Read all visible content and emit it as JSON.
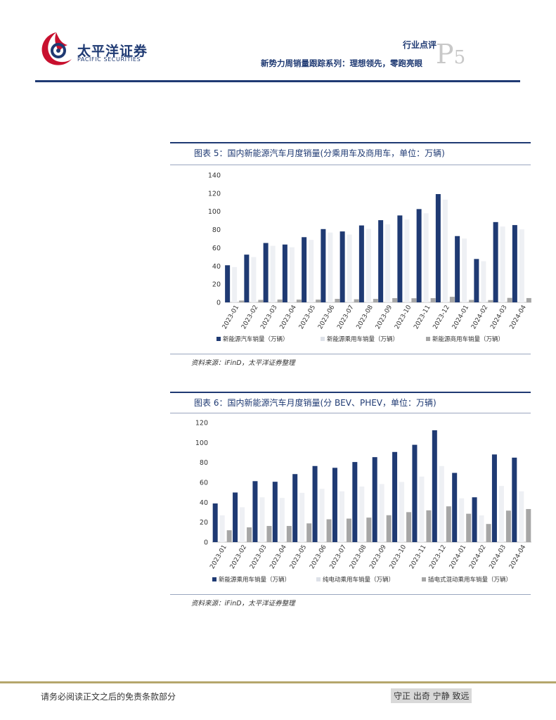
{
  "header": {
    "logo_cn": "太平洋证券",
    "logo_en": "PACIFIC SECURITIES",
    "doc_type": "行业点评",
    "doc_title": "新势力周销量跟踪系列：理想领先，零跑亮眼",
    "page_letter": "P",
    "page_number": "5"
  },
  "figures": [
    {
      "title": "图表 5：国内新能源汽车月度销量(分乘用车及商用车，单位：万辆)",
      "source": "资料来源：iFinD，太平洋证券整理",
      "chart_data": {
        "type": "bar",
        "categories": [
          "2023-01",
          "2023-02",
          "2023-03",
          "2023-04",
          "2023-05",
          "2023-06",
          "2023-07",
          "2023-08",
          "2023-09",
          "2023-10",
          "2023-11",
          "2023-12",
          "2024-01",
          "2024-02",
          "2024-03",
          "2024-04"
        ],
        "series": [
          {
            "name": "新能源汽车销量（万辆）",
            "color": "#1f3a73",
            "values": [
              40.8,
              52.5,
              65.3,
              63.6,
              71.7,
              80.6,
              78.0,
              84.6,
              90.4,
              95.6,
              102.6,
              119.1,
              72.9,
              47.7,
              88.3,
              85.0
            ]
          },
          {
            "name": "新能源乘用车销量（万辆）",
            "color": "#eef0f4",
            "values": [
              38.8,
              49.8,
              62.2,
              60.6,
              68.7,
              76.8,
              74.6,
              80.8,
              85.8,
              91.1,
              98.0,
              113.0,
              70.2,
              45.2,
              83.4,
              80.3
            ]
          },
          {
            "name": "新能源商用车销量（万辆）",
            "color": "#a6a6a6",
            "values": [
              2.0,
              2.7,
              3.1,
              3.0,
              3.0,
              3.8,
              3.4,
              3.8,
              4.6,
              4.5,
              4.6,
              6.1,
              2.7,
              2.5,
              4.9,
              4.7
            ]
          }
        ],
        "ylim": [
          0,
          140
        ],
        "yticks": [
          0,
          20,
          40,
          60,
          80,
          100,
          120,
          140
        ],
        "grid": false,
        "legend": "bottom"
      }
    },
    {
      "title": "图表 6：国内新能源汽车月度销量(分 BEV、PHEV，单位：万辆)",
      "source": "资料来源：iFinD，太平洋证券整理",
      "chart_data": {
        "type": "bar",
        "categories": [
          "2023-01",
          "2023-02",
          "2023-03",
          "2023-04",
          "2023-05",
          "2023-06",
          "2023-07",
          "2023-08",
          "2023-09",
          "2023-10",
          "2023-11",
          "2023-12",
          "2024-01",
          "2024-02",
          "2024-03",
          "2024-04"
        ],
        "series": [
          {
            "name": "新能源乘用车销量（万辆）",
            "color": "#1f3a73",
            "values": [
              38.8,
              49.8,
              61.2,
              60.6,
              68.3,
              76.4,
              74.6,
              80.4,
              85.3,
              90.5,
              97.7,
              112.3,
              69.5,
              45.0,
              88.0,
              84.8
            ]
          },
          {
            "name": "纯电动乘用车销量（万辆）",
            "color": "#eef0f4",
            "values": [
              26.9,
              35.0,
              45.0,
              44.4,
              49.5,
              53.5,
              51.0,
              55.8,
              58.3,
              60.4,
              65.8,
              76.4,
              44.0,
              26.8,
              56.4,
              51.0
            ]
          },
          {
            "name": "插电式混动乘用车销量（万辆）",
            "color": "#a6a6a6",
            "values": [
              11.9,
              14.8,
              16.2,
              16.2,
              18.8,
              22.9,
              23.6,
              24.6,
              27.0,
              30.1,
              31.9,
              35.9,
              28.5,
              18.2,
              31.6,
              33.2
            ]
          }
        ],
        "ylim": [
          0,
          120
        ],
        "yticks": [
          0,
          20,
          40,
          60,
          80,
          100,
          120
        ],
        "grid": false,
        "legend": "bottom"
      }
    }
  ],
  "footer": {
    "disclaimer": "请务必阅读正文之后的免责条款部分",
    "motto": "守正 出奇 宁静 致远"
  }
}
